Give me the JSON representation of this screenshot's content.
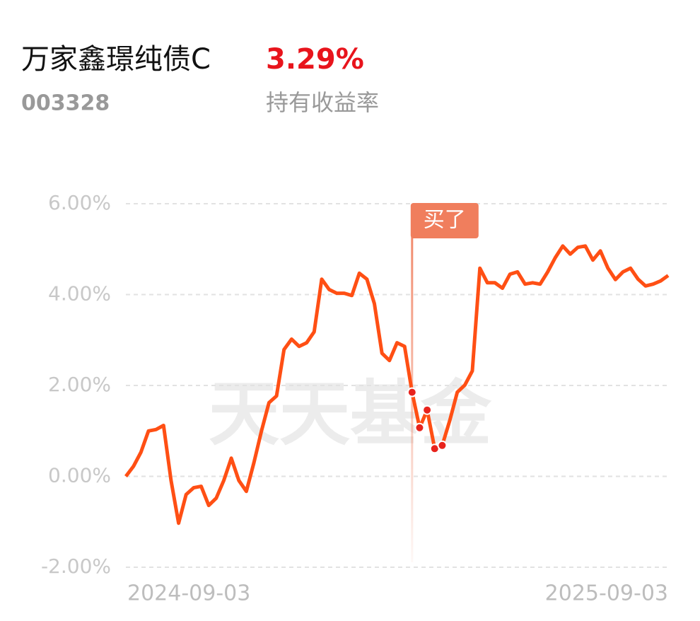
{
  "header": {
    "name": "万家鑫璟纯债C",
    "code": "003328",
    "return": "3.29%",
    "return_label": "持有收益率"
  },
  "chart_data": {
    "type": "line",
    "watermark": "天天基金",
    "annotation": {
      "text": "买了",
      "index": 38
    },
    "trade_points": [
      38,
      39,
      40,
      41,
      42
    ],
    "ylim": [
      -2,
      6
    ],
    "yticks": [
      {
        "value": 6,
        "label": "6.00%"
      },
      {
        "value": 4,
        "label": "4.00%"
      },
      {
        "value": 2,
        "label": "2.00%"
      },
      {
        "value": 0,
        "label": "0.00%"
      },
      {
        "value": -2,
        "label": "-2.00%"
      }
    ],
    "grid": true,
    "categories": [
      "2024-09-03",
      null,
      null,
      null,
      null,
      null,
      null,
      null,
      null,
      null,
      null,
      null,
      null,
      null,
      null,
      null,
      null,
      null,
      null,
      null,
      null,
      null,
      null,
      null,
      null,
      null,
      null,
      null,
      null,
      null,
      null,
      null,
      null,
      null,
      null,
      null,
      null,
      null,
      null,
      null,
      null,
      null,
      null,
      null,
      null,
      null,
      null,
      null,
      null,
      null,
      null,
      null,
      null,
      null,
      null,
      null,
      null,
      null,
      null,
      null,
      null,
      null,
      null,
      null,
      null,
      null,
      null,
      null,
      null,
      null,
      null,
      null,
      "2025-09-03"
    ],
    "series": [
      {
        "color": "#ff4f14",
        "values": [
          0,
          0.22,
          0.53,
          1.0,
          1.03,
          1.12,
          -0.09,
          -1.03,
          -0.4,
          -0.25,
          -0.22,
          -0.64,
          -0.48,
          -0.09,
          0.4,
          -0.09,
          -0.33,
          0.3,
          1.0,
          1.62,
          1.77,
          2.79,
          3.02,
          2.86,
          2.94,
          3.18,
          4.34,
          4.11,
          4.03,
          4.03,
          3.98,
          4.47,
          4.34,
          3.8,
          2.71,
          2.55,
          2.94,
          2.86,
          1.85,
          1.07,
          1.46,
          0.61,
          0.68,
          1.23,
          1.85,
          2.01,
          2.32,
          4.58,
          4.26,
          4.26,
          4.14,
          4.45,
          4.5,
          4.23,
          4.26,
          4.23,
          4.5,
          4.81,
          5.07,
          4.89,
          5.04,
          5.07,
          4.76,
          4.96,
          4.58,
          4.33,
          4.5,
          4.58,
          4.34,
          4.19,
          4.23,
          4.3,
          4.42
        ]
      }
    ]
  }
}
